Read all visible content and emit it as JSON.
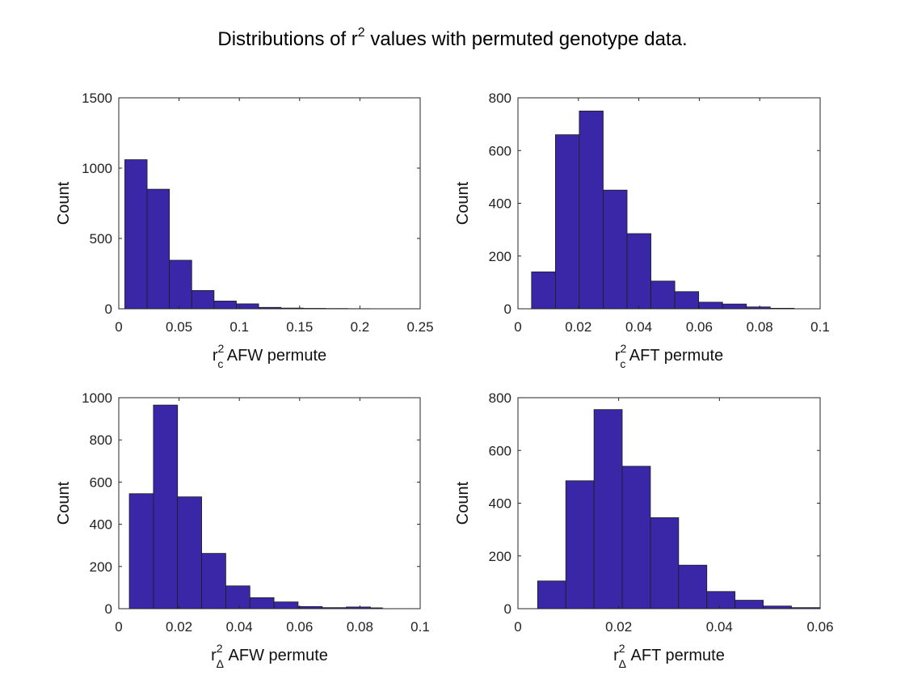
{
  "figure": {
    "title": {
      "prefix": "Distributions of r",
      "sup": "2",
      "suffix": " values with permuted genotype data."
    }
  },
  "colors": {
    "bar_fill": "#3a27a8",
    "bar_edge": "#1b1b1b",
    "axis": "#262626"
  },
  "chart_data": [
    {
      "type": "bar",
      "name": "AFW_c",
      "xlabel": {
        "base": "r",
        "sup": "2",
        "sub": "c",
        "rest": " AFW permute"
      },
      "ylabel": "Count",
      "xlim": [
        0,
        0.25
      ],
      "ylim": [
        0,
        1500
      ],
      "xticks": [
        0,
        0.05,
        0.1,
        0.15,
        0.2,
        0.25
      ],
      "xtick_labels": [
        "0",
        "0.05",
        "0.1",
        "0.15",
        "0.2",
        "0.25"
      ],
      "yticks": [
        0,
        500,
        1000,
        1500
      ],
      "ytick_labels": [
        "0",
        "500",
        "1000",
        "1500"
      ],
      "bin_edges": [
        0.005,
        0.0235,
        0.042,
        0.0605,
        0.079,
        0.0975,
        0.116,
        0.1345,
        0.153,
        0.1715,
        0.19,
        0.2085
      ],
      "values": [
        1060,
        850,
        345,
        130,
        55,
        35,
        10,
        5,
        3,
        2,
        1
      ]
    },
    {
      "type": "bar",
      "name": "AFT_c",
      "xlabel": {
        "base": "r",
        "sup": "2",
        "sub": "c",
        "rest": " AFT permute"
      },
      "ylabel": "Count",
      "xlim": [
        0,
        0.1
      ],
      "ylim": [
        0,
        800
      ],
      "xticks": [
        0,
        0.02,
        0.04,
        0.06,
        0.08,
        0.1
      ],
      "xtick_labels": [
        "0",
        "0.02",
        "0.04",
        "0.06",
        "0.08",
        "0.1"
      ],
      "yticks": [
        0,
        200,
        400,
        600,
        800
      ],
      "ytick_labels": [
        "0",
        "200",
        "400",
        "600",
        "800"
      ],
      "bin_edges": [
        0.0045,
        0.0124,
        0.0203,
        0.0282,
        0.0361,
        0.044,
        0.0519,
        0.0598,
        0.0677,
        0.0756,
        0.0835,
        0.0914
      ],
      "values": [
        140,
        660,
        750,
        450,
        285,
        105,
        65,
        25,
        18,
        7,
        2
      ]
    },
    {
      "type": "bar",
      "name": "AFW_delta",
      "xlabel": {
        "base": "r",
        "sup": "2",
        "sub": "Δ",
        "rest": " AFW permute"
      },
      "ylabel": "Count",
      "xlim": [
        0,
        0.1
      ],
      "ylim": [
        0,
        1000
      ],
      "xticks": [
        0,
        0.02,
        0.04,
        0.06,
        0.08,
        0.1
      ],
      "xtick_labels": [
        "0",
        "0.02",
        "0.04",
        "0.06",
        "0.08",
        "0.1"
      ],
      "yticks": [
        0,
        200,
        400,
        600,
        800,
        1000
      ],
      "ytick_labels": [
        "0",
        "200",
        "400",
        "600",
        "800",
        "1000"
      ],
      "bin_edges": [
        0.0035,
        0.0115,
        0.0195,
        0.0275,
        0.0355,
        0.0435,
        0.0515,
        0.0595,
        0.0675,
        0.0755,
        0.0835,
        0.0875
      ],
      "values": [
        545,
        965,
        530,
        262,
        108,
        52,
        32,
        10,
        5,
        8,
        4
      ]
    },
    {
      "type": "bar",
      "name": "AFT_delta",
      "xlabel": {
        "base": "r",
        "sup": "2",
        "sub": "Δ",
        "rest": " AFT permute"
      },
      "ylabel": "Count",
      "xlim": [
        0,
        0.06
      ],
      "ylim": [
        0,
        800
      ],
      "xticks": [
        0,
        0.02,
        0.04,
        0.06
      ],
      "xtick_labels": [
        "0",
        "0.02",
        "0.04",
        "0.06"
      ],
      "yticks": [
        0,
        200,
        400,
        600,
        800
      ],
      "ytick_labels": [
        "0",
        "200",
        "400",
        "600",
        "800"
      ],
      "bin_edges": [
        0.0039,
        0.0095,
        0.0151,
        0.0207,
        0.0263,
        0.0319,
        0.0375,
        0.0431,
        0.0487,
        0.0543,
        0.06
      ],
      "values": [
        105,
        485,
        755,
        540,
        345,
        165,
        65,
        32,
        10,
        4
      ]
    }
  ]
}
